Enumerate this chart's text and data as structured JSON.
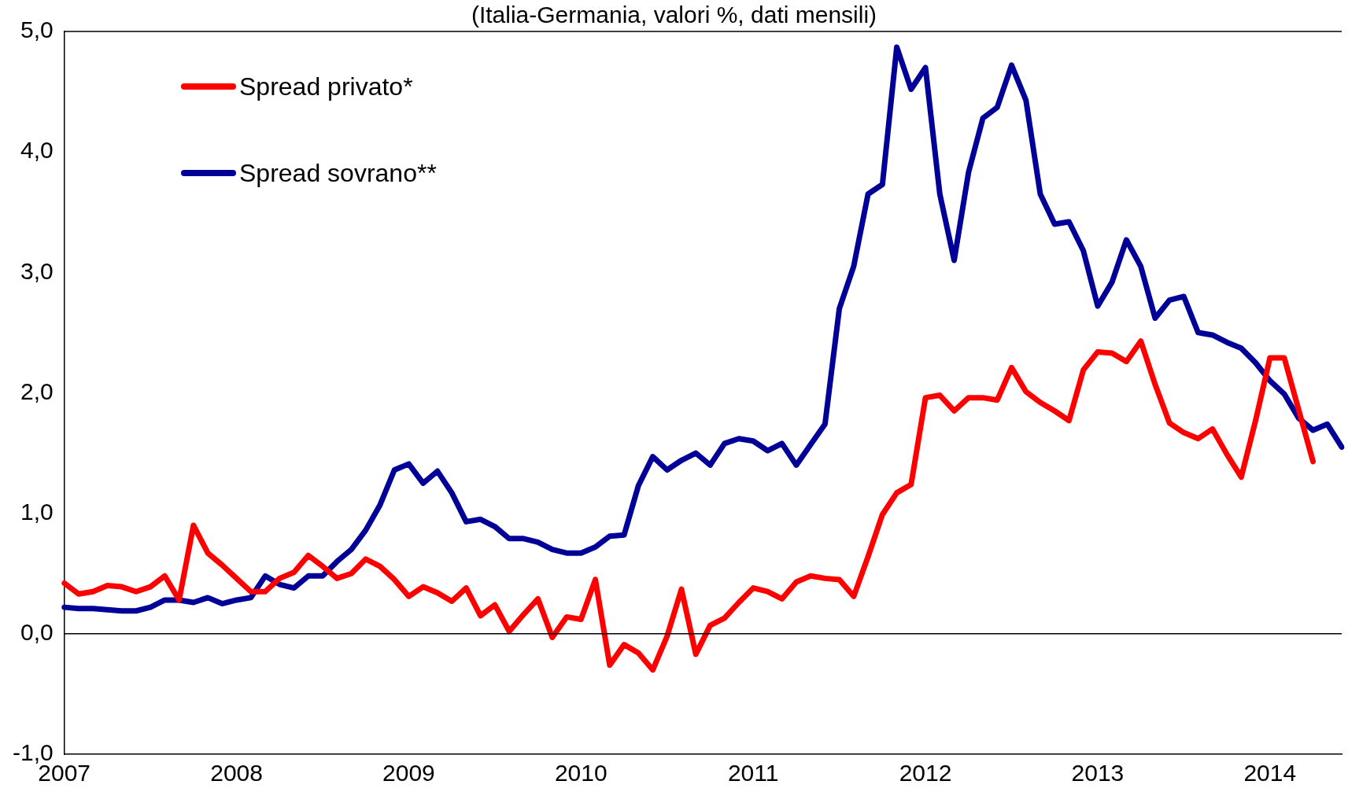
{
  "chart_data": {
    "type": "line",
    "subtitle": "(Italia-Germania, valori %, dati mensili)",
    "categories": [
      "2007",
      null,
      null,
      null,
      null,
      null,
      null,
      null,
      null,
      null,
      null,
      null,
      "2008",
      null,
      null,
      null,
      null,
      null,
      null,
      null,
      null,
      null,
      null,
      null,
      "2009",
      null,
      null,
      null,
      null,
      null,
      null,
      null,
      null,
      null,
      null,
      null,
      "2010",
      null,
      null,
      null,
      null,
      null,
      null,
      null,
      null,
      null,
      null,
      null,
      "2011",
      null,
      null,
      null,
      null,
      null,
      null,
      null,
      null,
      null,
      null,
      null,
      "2012",
      null,
      null,
      null,
      null,
      null,
      null,
      null,
      null,
      null,
      null,
      null,
      "2013",
      null,
      null,
      null,
      null,
      null,
      null,
      null,
      null,
      null,
      null,
      null,
      "2014",
      null,
      null,
      null,
      null,
      null
    ],
    "series": [
      {
        "name": "Spread privato*",
        "color": "#ff0000",
        "values": [
          0.42,
          0.33,
          0.35,
          0.4,
          0.39,
          0.35,
          0.39,
          0.48,
          0.28,
          0.9,
          0.67,
          0.57,
          0.46,
          0.35,
          0.35,
          0.46,
          0.51,
          0.65,
          0.56,
          0.46,
          0.5,
          0.62,
          0.56,
          0.45,
          0.31,
          0.39,
          0.34,
          0.27,
          0.38,
          0.15,
          0.24,
          0.02,
          0.16,
          0.29,
          -0.03,
          0.14,
          0.12,
          0.45,
          -0.26,
          -0.09,
          -0.16,
          -0.3,
          -0.02,
          0.37,
          -0.17,
          0.07,
          0.13,
          0.26,
          0.38,
          0.35,
          0.29,
          0.43,
          0.48,
          0.46,
          0.45,
          0.31,
          0.64,
          0.99,
          1.17,
          1.24,
          1.96,
          1.98,
          1.85,
          1.96,
          1.96,
          1.94,
          2.21,
          2.01,
          1.92,
          1.85,
          1.77,
          2.19,
          2.34,
          2.33,
          2.26,
          2.43,
          2.07,
          1.75,
          1.67,
          1.62,
          1.7,
          1.49,
          1.3,
          1.77,
          2.29,
          2.29,
          1.86,
          1.43,
          null,
          null
        ]
      },
      {
        "name": "Spread sovrano**",
        "color": "#000099",
        "values": [
          0.22,
          0.21,
          0.21,
          0.2,
          0.19,
          0.19,
          0.22,
          0.28,
          0.28,
          0.26,
          0.3,
          0.25,
          0.28,
          0.3,
          0.48,
          0.41,
          0.38,
          0.48,
          0.48,
          0.6,
          0.7,
          0.86,
          1.07,
          1.36,
          1.41,
          1.25,
          1.35,
          1.17,
          0.93,
          0.95,
          0.89,
          0.79,
          0.79,
          0.76,
          0.7,
          0.67,
          0.67,
          0.72,
          0.81,
          0.82,
          1.23,
          1.47,
          1.36,
          1.44,
          1.5,
          1.4,
          1.58,
          1.62,
          1.6,
          1.52,
          1.58,
          1.4,
          1.57,
          1.74,
          2.7,
          3.05,
          3.65,
          3.73,
          4.87,
          4.52,
          4.7,
          3.65,
          3.1,
          3.83,
          4.28,
          4.37,
          4.72,
          4.43,
          3.65,
          3.4,
          3.42,
          3.18,
          2.72,
          2.92,
          3.27,
          3.05,
          2.62,
          2.77,
          2.8,
          2.5,
          2.48,
          2.42,
          2.37,
          2.25,
          2.1,
          1.99,
          1.79,
          1.69,
          1.74,
          1.55
        ]
      }
    ],
    "ylim": [
      -1,
      5
    ],
    "yticks": [
      {
        "value": -1,
        "label": "-1,0"
      },
      {
        "value": 0,
        "label": "0,0"
      },
      {
        "value": 1,
        "label": "1,0"
      },
      {
        "value": 2,
        "label": "2,0"
      },
      {
        "value": 3,
        "label": "3,0"
      },
      {
        "value": 4,
        "label": "4,0"
      },
      {
        "value": 5,
        "label": "5,0"
      }
    ],
    "ref_lines": [
      {
        "axis": "y",
        "value": 0,
        "color": "#000000"
      }
    ],
    "legend": "top left",
    "marker": "none",
    "line_style": "solid"
  }
}
